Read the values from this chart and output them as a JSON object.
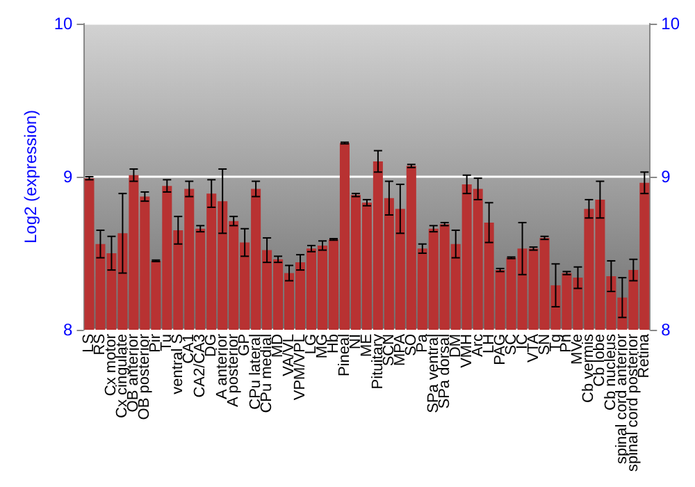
{
  "chart_data": {
    "type": "bar",
    "ylabel": "Log2 (expression)",
    "categories": [
      "LS",
      "RS",
      "Cx motor",
      "Cx cingulate",
      "OB anterior",
      "OB posterior",
      "Pir",
      "Tu",
      "ventral S",
      "CA1",
      "CA2/CA3",
      "DG",
      "A anterior",
      "A posterior",
      "GP",
      "CPu lateral",
      "CPu medial",
      "MD",
      "VA/VL",
      "VPM/VPL",
      "LG",
      "MG",
      "Hb",
      "Pineal",
      "NI",
      "ME",
      "Pituitary",
      "SCN",
      "MPA",
      "SO",
      "Pa",
      "SPa ventral",
      "SPa dorsal",
      "DM",
      "VMH",
      "Arc",
      "LH",
      "PAG",
      "SC",
      "IC",
      "VTA",
      "SN",
      "Tg",
      "Pn",
      "MVe",
      "Cb vermis",
      "Cb lobe",
      "Cb nucleus",
      "spinal cord anterior",
      "spinal cord posterior",
      "Retina"
    ],
    "values": [
      8.99,
      8.56,
      8.5,
      8.63,
      9.01,
      8.87,
      8.45,
      8.94,
      8.65,
      8.92,
      8.66,
      8.89,
      8.84,
      8.71,
      8.57,
      8.92,
      8.52,
      8.46,
      8.37,
      8.44,
      8.53,
      8.55,
      8.59,
      9.22,
      8.88,
      8.83,
      9.1,
      8.86,
      8.79,
      9.07,
      8.53,
      8.66,
      8.69,
      8.56,
      8.95,
      8.92,
      8.7,
      8.39,
      8.47,
      8.53,
      8.53,
      8.6,
      8.29,
      8.37,
      8.34,
      8.79,
      8.85,
      8.35,
      8.21,
      8.39,
      8.96
    ],
    "errors": [
      0.01,
      0.09,
      0.11,
      0.26,
      0.04,
      0.03,
      0.005,
      0.04,
      0.09,
      0.05,
      0.02,
      0.09,
      0.21,
      0.03,
      0.09,
      0.05,
      0.08,
      0.02,
      0.05,
      0.05,
      0.02,
      0.03,
      0.005,
      0.005,
      0.01,
      0.02,
      0.07,
      0.11,
      0.16,
      0.01,
      0.03,
      0.02,
      0.01,
      0.09,
      0.06,
      0.07,
      0.13,
      0.01,
      0.005,
      0.17,
      0.01,
      0.01,
      0.14,
      0.01,
      0.07,
      0.06,
      0.12,
      0.1,
      0.13,
      0.07,
      0.07
    ],
    "color": "#b83232",
    "ylim": [
      8,
      10
    ],
    "yticks": [
      8,
      9,
      10
    ],
    "y2lim": [
      8,
      10
    ],
    "y2ticks": [
      8,
      9,
      10
    ],
    "grid": "y"
  }
}
